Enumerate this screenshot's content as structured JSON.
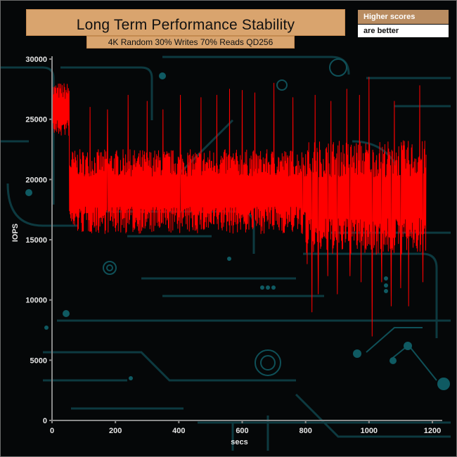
{
  "chart_data": {
    "type": "line",
    "title": "Long Term Performance Stability",
    "subtitle": "4K Random 30% Writes 70% Reads QD256",
    "note_line1": "Higher scores",
    "note_line2": "are better",
    "xlabel": "secs",
    "ylabel": "IOPS",
    "xlim": [
      0,
      1200
    ],
    "ylim": [
      0,
      30000
    ],
    "x_ticks": [
      0,
      200,
      400,
      600,
      800,
      1000,
      1200
    ],
    "y_ticks": [
      0,
      5000,
      10000,
      15000,
      20000,
      25000,
      30000
    ],
    "grid": false,
    "series": [
      {
        "color": "#ff0000",
        "sample_interval": 1,
        "x_range": [
          0,
          1180
        ],
        "regimes": [
          {
            "x_from": 0,
            "x_to": 55,
            "low": 23500,
            "high": 28000,
            "typical": 25800
          },
          {
            "x_from": 55,
            "x_to": 800,
            "low": 15500,
            "high": 22500,
            "typical": 19000
          },
          {
            "x_from": 800,
            "x_to": 1180,
            "low": 14000,
            "high": 23500,
            "typical": 18500
          }
        ],
        "spikes": [
          {
            "x": 120,
            "y": 26000
          },
          {
            "x": 175,
            "y": 25800
          },
          {
            "x": 240,
            "y": 27000
          },
          {
            "x": 300,
            "y": 26500
          },
          {
            "x": 350,
            "y": 25800
          },
          {
            "x": 405,
            "y": 27000
          },
          {
            "x": 470,
            "y": 26800
          },
          {
            "x": 520,
            "y": 27000
          },
          {
            "x": 560,
            "y": 27500
          },
          {
            "x": 600,
            "y": 27400
          },
          {
            "x": 640,
            "y": 27200
          },
          {
            "x": 700,
            "y": 28000
          },
          {
            "x": 760,
            "y": 26800
          },
          {
            "x": 830,
            "y": 27000
          },
          {
            "x": 880,
            "y": 26500
          },
          {
            "x": 930,
            "y": 27500
          },
          {
            "x": 970,
            "y": 27000
          },
          {
            "x": 1000,
            "y": 28500
          },
          {
            "x": 1040,
            "y": 27000
          },
          {
            "x": 1080,
            "y": 26500
          },
          {
            "x": 1160,
            "y": 27800
          }
        ],
        "dips": [
          {
            "x": 790,
            "y": 15500
          },
          {
            "x": 805,
            "y": 13000
          },
          {
            "x": 820,
            "y": 9000
          },
          {
            "x": 840,
            "y": 10500
          },
          {
            "x": 870,
            "y": 12000
          },
          {
            "x": 900,
            "y": 10500
          },
          {
            "x": 940,
            "y": 12000
          },
          {
            "x": 975,
            "y": 11500
          },
          {
            "x": 1010,
            "y": 7000
          },
          {
            "x": 1040,
            "y": 11500
          },
          {
            "x": 1070,
            "y": 9500
          },
          {
            "x": 1100,
            "y": 11000
          },
          {
            "x": 1125,
            "y": 9500
          },
          {
            "x": 1170,
            "y": 11500
          }
        ]
      }
    ]
  }
}
